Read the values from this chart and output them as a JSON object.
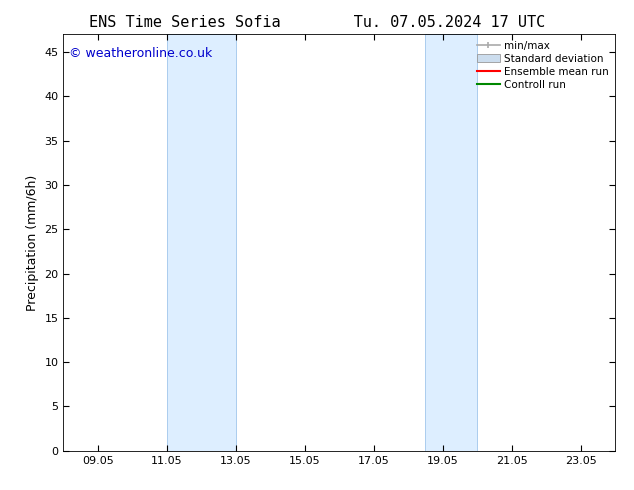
{
  "title_left": "ENS Time Series Sofia",
  "title_right": "Tu. 07.05.2024 17 UTC",
  "ylabel": "Precipitation (mm/6h)",
  "background_color": "#ffffff",
  "plot_bg_color": "#ffffff",
  "xmin": 8.0,
  "xmax": 24.0,
  "ymin": 0,
  "ymax": 47,
  "yticks": [
    0,
    5,
    10,
    15,
    20,
    25,
    30,
    35,
    40,
    45
  ],
  "xtick_labels": [
    "09.05",
    "11.05",
    "13.05",
    "15.05",
    "17.05",
    "19.05",
    "21.05",
    "23.05"
  ],
  "xtick_positions": [
    9,
    11,
    13,
    15,
    17,
    19,
    21,
    23
  ],
  "shaded_regions": [
    {
      "xstart": 11.0,
      "xend": 13.0
    },
    {
      "xstart": 18.5,
      "xend": 20.0
    }
  ],
  "shaded_color": "#ddeeff",
  "shaded_edge_color": "#aaccee",
  "watermark_text": "© weatheronline.co.uk",
  "watermark_color": "#0000cc",
  "legend_items": [
    {
      "label": "min/max",
      "color": "#aaaaaa",
      "type": "hline_with_caps"
    },
    {
      "label": "Standard deviation",
      "color": "#ccddee",
      "type": "filled_box"
    },
    {
      "label": "Ensemble mean run",
      "color": "#ff0000",
      "type": "line"
    },
    {
      "label": "Controll run",
      "color": "#008800",
      "type": "line"
    }
  ],
  "title_fontsize": 11,
  "axis_fontsize": 9,
  "tick_fontsize": 8,
  "watermark_fontsize": 9,
  "legend_fontsize": 7.5
}
